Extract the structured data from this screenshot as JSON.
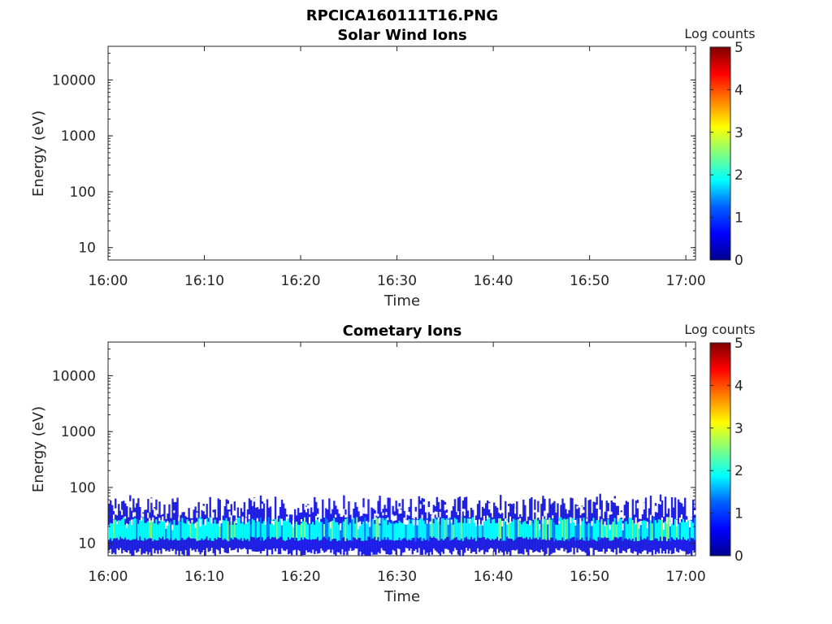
{
  "figure_title": "RPCICA160111T16.PNG",
  "colors": {
    "colormap": [
      "#00008f",
      "#0000ff",
      "#0080ff",
      "#00ffff",
      "#80ff80",
      "#ffff00",
      "#ff8000",
      "#ff0000",
      "#800000"
    ]
  },
  "chart_data": [
    {
      "type": "heatmap",
      "title": "Solar Wind Ions",
      "xlabel": "Time",
      "ylabel": "Energy (eV)",
      "x_ticks": [
        "16:00",
        "16:10",
        "16:20",
        "16:30",
        "16:40",
        "16:50",
        "17:00"
      ],
      "xlim": [
        "16:00",
        "17:01"
      ],
      "y_scale": "log",
      "y_ticks": [
        "10",
        "100",
        "1000",
        "10000"
      ],
      "ylim": [
        6,
        40000
      ],
      "colorbar": {
        "label": "Log counts",
        "range": [
          0,
          5
        ],
        "ticks": [
          "0",
          "1",
          "2",
          "3",
          "4",
          "5"
        ]
      },
      "data_description": "no counts"
    },
    {
      "type": "heatmap",
      "title": "Cometary Ions",
      "xlabel": "Time",
      "ylabel": "Energy (eV)",
      "x_ticks": [
        "16:00",
        "16:10",
        "16:20",
        "16:30",
        "16:40",
        "16:50",
        "17:00"
      ],
      "xlim": [
        "16:00",
        "17:01"
      ],
      "y_scale": "log",
      "y_ticks": [
        "10",
        "100",
        "1000",
        "10000"
      ],
      "ylim": [
        6,
        40000
      ],
      "colorbar": {
        "label": "Log counts",
        "range": [
          0,
          5
        ],
        "ticks": [
          "0",
          "1",
          "2",
          "3",
          "4",
          "5"
        ]
      },
      "band": {
        "energy_min_eV": 6,
        "energy_max_eV": 80,
        "core_energy_eV": [
          12,
          25
        ],
        "core_log_counts": 2.0,
        "edge_log_counts": 0.8
      }
    }
  ]
}
